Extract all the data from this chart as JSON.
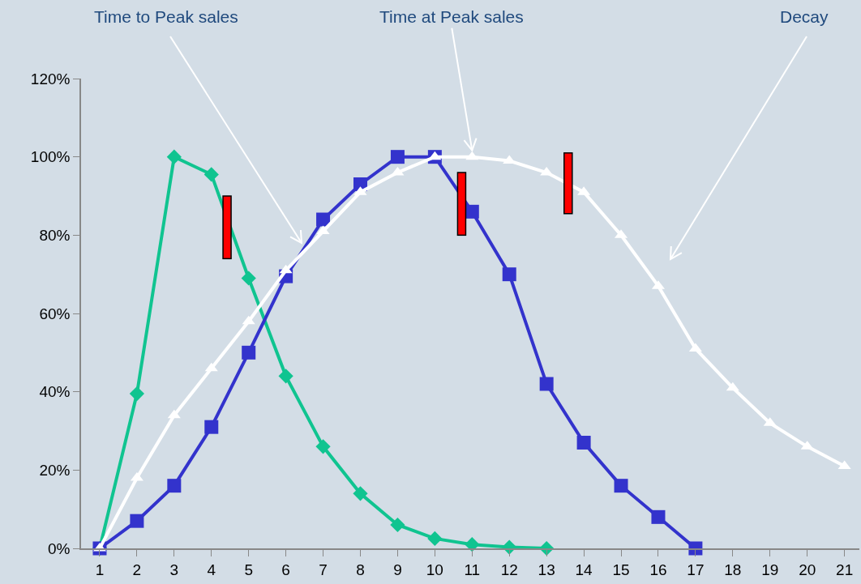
{
  "chart_data": {
    "type": "line",
    "x": [
      1,
      2,
      3,
      4,
      5,
      6,
      7,
      8,
      9,
      10,
      11,
      12,
      13,
      14,
      15,
      16,
      17,
      18,
      19,
      20,
      21
    ],
    "series": [
      {
        "color": "#10c490",
        "marker": "diamond",
        "values": [
          0,
          39.5,
          100,
          95.5,
          69,
          44,
          26,
          14,
          6,
          2.5,
          1,
          0.3,
          0,
          null,
          null,
          null,
          null,
          null,
          null,
          null,
          null
        ]
      },
      {
        "color": "#3333cc",
        "marker": "square",
        "values": [
          0,
          7,
          16,
          31,
          50,
          69.5,
          84,
          93,
          100,
          100,
          86,
          70,
          42,
          27,
          16,
          8,
          0,
          null,
          null,
          null,
          null
        ]
      },
      {
        "color": "#ffffff",
        "marker": "triangle",
        "values": [
          0,
          18,
          34,
          46,
          58,
          71,
          81,
          91,
          96,
          100,
          100,
          99,
          96,
          91,
          80,
          67,
          51,
          41,
          32,
          26,
          21
        ]
      }
    ],
    "xlim": [
      0.5,
      21.4
    ],
    "xticks": [
      1,
      2,
      3,
      4,
      5,
      6,
      7,
      8,
      9,
      10,
      11,
      12,
      13,
      14,
      15,
      16,
      17,
      18,
      19,
      20,
      21
    ],
    "ylim": [
      0,
      120
    ],
    "yticks": [
      {
        "value": 0,
        "label": "0%"
      },
      {
        "value": 20,
        "label": "20%"
      },
      {
        "value": 40,
        "label": "40%"
      },
      {
        "value": 60,
        "label": "60%"
      },
      {
        "value": 80,
        "label": "80%"
      },
      {
        "value": 100,
        "label": "100%"
      },
      {
        "value": 120,
        "label": "120%"
      }
    ],
    "grid": false,
    "line_style": "solid",
    "annotations": [
      "Time to Peak sales",
      {
        "text": "Time at Peak sales",
        "x": 11,
        "y": 100
      },
      "Decay"
    ]
  }
}
